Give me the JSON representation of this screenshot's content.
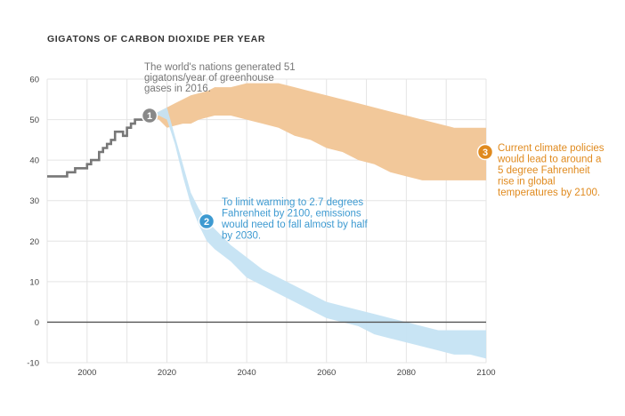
{
  "chart_data": {
    "type": "area",
    "title": "GIGATONS OF CARBON DIOXIDE PER YEAR",
    "xlim": [
      1990,
      2100
    ],
    "ylim": [
      -10,
      60
    ],
    "x_ticks": [
      "2000",
      "2020",
      "2040",
      "2060",
      "2080",
      "2100"
    ],
    "y_ticks": [
      "60",
      "50",
      "40",
      "30",
      "20",
      "10",
      "0",
      "-10"
    ],
    "grid": true,
    "colors": {
      "history": "#777777",
      "policy": "#f2c89a",
      "target": "#c5e3f3",
      "zero": "#555555",
      "gray_badge": "#888888",
      "blue": "#3d9ad1",
      "orange": "#e08a1e"
    },
    "history": {
      "x": [
        1990,
        1991,
        1992,
        1993,
        1994,
        1995,
        1996,
        1997,
        1998,
        1999,
        2000,
        2001,
        2002,
        2003,
        2004,
        2005,
        2006,
        2007,
        2008,
        2009,
        2010,
        2011,
        2012,
        2013,
        2014,
        2015,
        2016
      ],
      "y": [
        36,
        36,
        36,
        36,
        36,
        37,
        37,
        38,
        38,
        38,
        39,
        40,
        40,
        42,
        43,
        44,
        45,
        47,
        47,
        46,
        48,
        49,
        50,
        50,
        51,
        51,
        51
      ]
    },
    "policy_band": {
      "x": [
        2016,
        2017,
        2018,
        2019,
        2020,
        2022,
        2024,
        2026,
        2028,
        2030,
        2032,
        2036,
        2040,
        2044,
        2048,
        2052,
        2056,
        2060,
        2064,
        2068,
        2072,
        2076,
        2080,
        2084,
        2088,
        2092,
        2096,
        2100
      ],
      "upper": [
        51,
        51.5,
        52,
        52.5,
        53,
        54,
        55,
        56,
        56.5,
        57,
        58,
        58,
        59,
        59,
        59,
        58,
        57,
        56,
        55,
        54,
        53,
        52,
        51,
        50,
        49,
        48,
        48,
        48
      ],
      "lower": [
        51,
        50.5,
        50,
        49,
        48,
        48.5,
        49,
        49,
        50,
        50.5,
        51,
        51,
        50,
        49,
        48,
        46,
        45,
        43,
        42,
        40,
        39,
        37,
        36,
        35,
        35,
        35,
        35,
        35
      ]
    },
    "target_band": {
      "x": [
        2016,
        2018,
        2020,
        2022,
        2024,
        2026,
        2028,
        2030,
        2032,
        2036,
        2040,
        2044,
        2048,
        2052,
        2056,
        2060,
        2064,
        2068,
        2072,
        2076,
        2080,
        2084,
        2088,
        2092,
        2096,
        2100
      ],
      "upper": [
        51,
        52,
        53,
        46,
        39,
        32,
        28,
        25,
        23,
        19,
        16,
        13,
        11,
        9,
        7,
        5,
        4,
        3,
        2,
        1,
        0,
        -1,
        -2,
        -2,
        -2,
        -2
      ],
      "lower": [
        51,
        51,
        50,
        44,
        36,
        29,
        24,
        20,
        18,
        15,
        11,
        9,
        7,
        5,
        3,
        1,
        0,
        -1,
        -3,
        -4,
        -5,
        -6,
        -7,
        -8,
        -8,
        -9
      ]
    },
    "annotations": [
      {
        "badge": "1",
        "lines": [
          "The world's nations generated 51",
          "gigatons/year of greenhouse",
          "gases in 2016."
        ]
      },
      {
        "badge": "2",
        "lines": [
          "To limit warming to 2.7 degrees",
          "Fahrenheit by 2100, emissions",
          "would need to fall almost by half",
          "by 2030."
        ]
      },
      {
        "badge": "3",
        "lines": [
          "Current climate policies",
          "would lead to around a",
          "5 degree Fahrenheit",
          "rise in global",
          "temperatures by 2100."
        ]
      }
    ]
  }
}
